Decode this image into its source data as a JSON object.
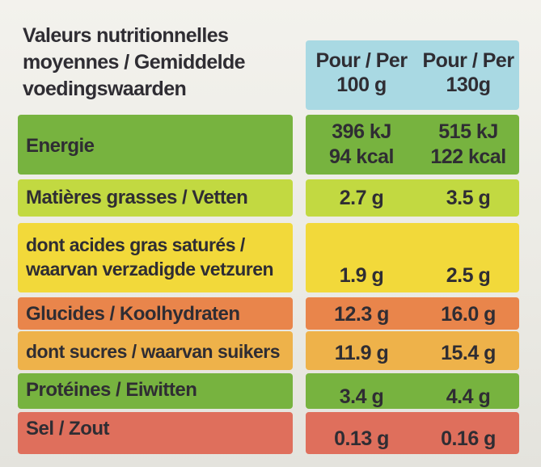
{
  "header": {
    "title": "Valeurs nutritionnelles\nmoyennes / Gemiddelde\nvoedingswaarden",
    "col1": "Pour / Per\n100 g",
    "col2": "Pour / Per\n130g"
  },
  "rows": [
    {
      "label": "Energie",
      "v1": "396 kJ\n94 kcal",
      "v2": "515 kJ\n122 kcal",
      "color": "#77b33f"
    },
    {
      "label": "Matières grasses / Vetten",
      "v1": "2.7 g",
      "v2": "3.5 g",
      "color": "#c2d941"
    },
    {
      "label": "dont acides gras saturés /\nwaarvan verzadigde vetzuren",
      "v1": "1.9 g",
      "v2": "2.5 g",
      "color": "#f2d93a"
    },
    {
      "label": "Glucides / Koolhydraten",
      "v1": "12.3 g",
      "v2": "16.0 g",
      "color": "#e9854b"
    },
    {
      "label": "dont sucres / waarvan suikers",
      "v1": "11.9 g",
      "v2": "15.4 g",
      "color": "#eeb24a"
    },
    {
      "label": "Protéines / Eiwitten",
      "v1": "3.4 g",
      "v2": "4.4 g",
      "color": "#77b33f"
    },
    {
      "label": "Sel / Zout",
      "v1": "0.13 g",
      "v2": "0.16 g",
      "color": "#df6f5c"
    }
  ]
}
